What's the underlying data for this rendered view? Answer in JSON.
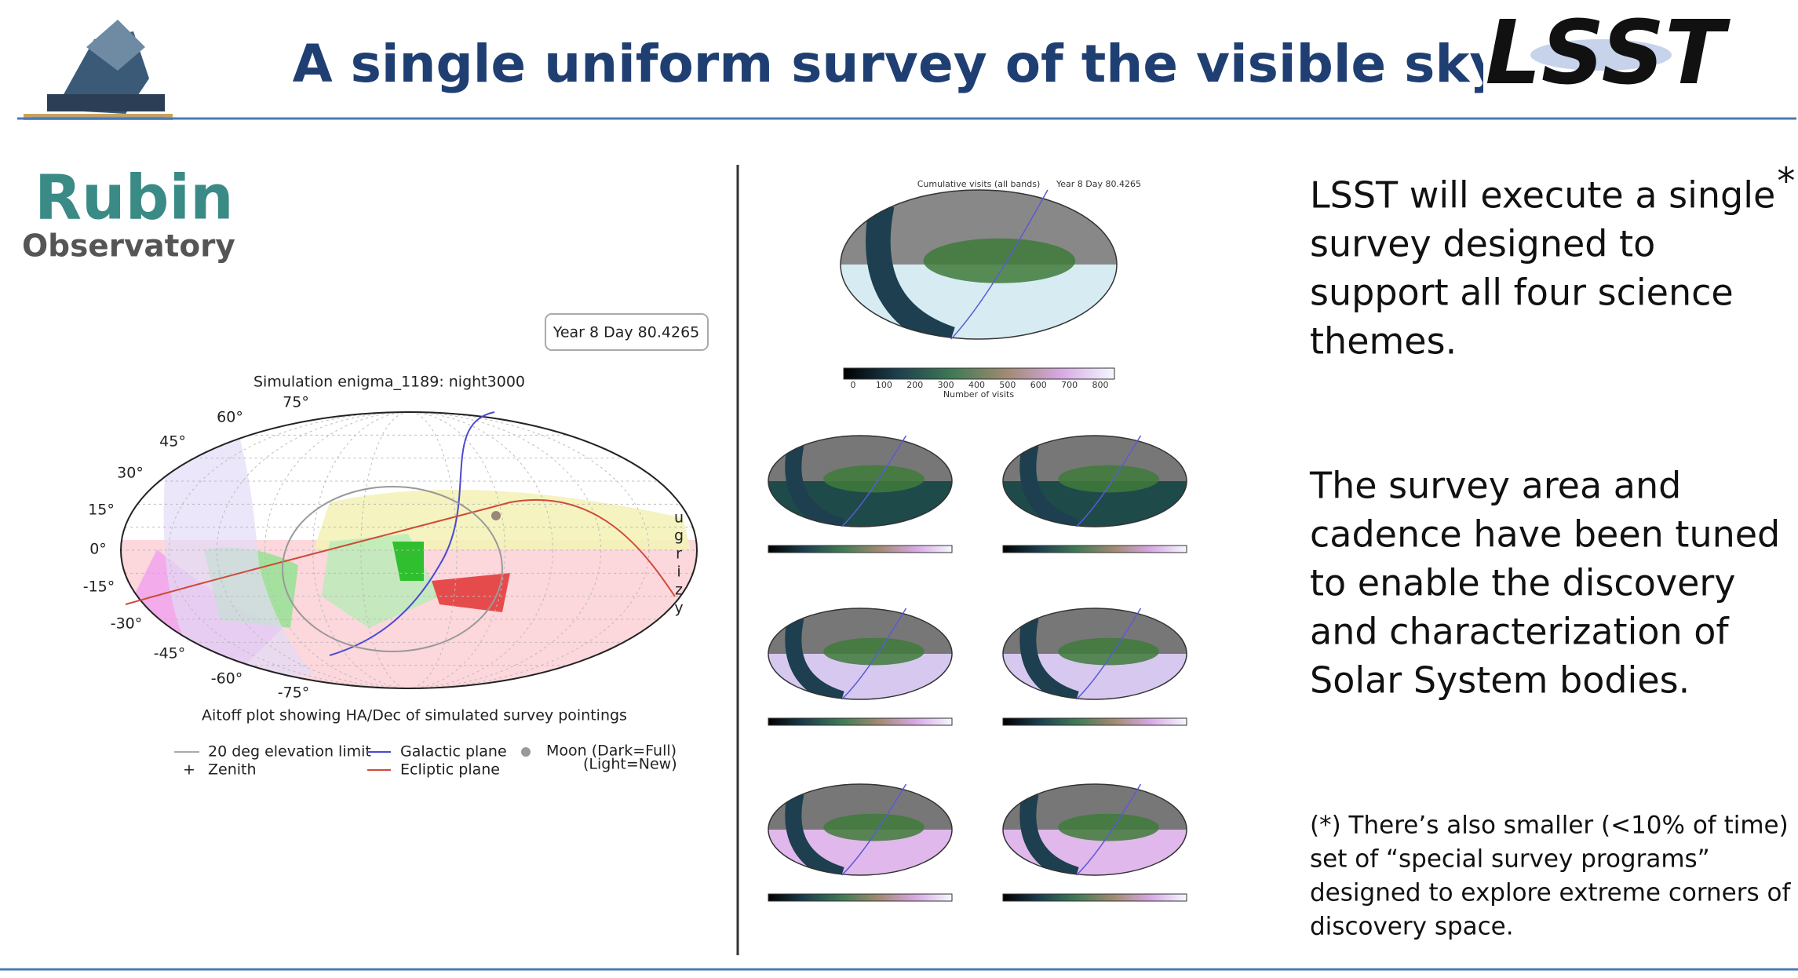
{
  "header": {
    "title": "A single uniform survey of the visible sky",
    "logo_right": "LSST"
  },
  "brand": {
    "name": "Rubin",
    "subtitle": "Observatory"
  },
  "left_figure": {
    "timestamp": "Year 8 Day 80.4265",
    "title": "Simulation enigma_1189: night3000",
    "dec_labels": [
      "75°",
      "60°",
      "45°",
      "30°",
      "15°",
      "0°",
      "-15°",
      "-30°",
      "-45°",
      "-60°",
      "-75°"
    ],
    "filters": [
      "u",
      "g",
      "r",
      "i",
      "z",
      "y"
    ],
    "caption": "Aitoff plot showing HA/Dec of simulated survey pointings",
    "legend": [
      "20 deg elevation limit",
      "Zenith",
      "Galactic plane",
      "Ecliptic plane",
      "Moon (Dark=Full)",
      "(Light=New)"
    ]
  },
  "right_figure": {
    "title": "Cumulative visits (all bands)",
    "timestamp": "Year 8 Day 80.4265",
    "colorbar_ticks": [
      "0",
      "100",
      "200",
      "300",
      "400",
      "500",
      "600",
      "700",
      "800"
    ],
    "colorbar_label": "Number of visits"
  },
  "text": {
    "paragraph1": [
      "LSST will execute a single",
      "survey designed to",
      "support all four science",
      "themes."
    ],
    "footnote_marker": "*",
    "paragraph2": [
      "The survey area and",
      "cadence have been tuned",
      "to enable the discovery",
      "and characterization of",
      "Solar System bodies."
    ],
    "footnote": [
      "(*) There’s also smaller (<10% of time)",
      "set of “special survey programs”",
      "designed to explore extreme corners of",
      "discovery space."
    ]
  }
}
